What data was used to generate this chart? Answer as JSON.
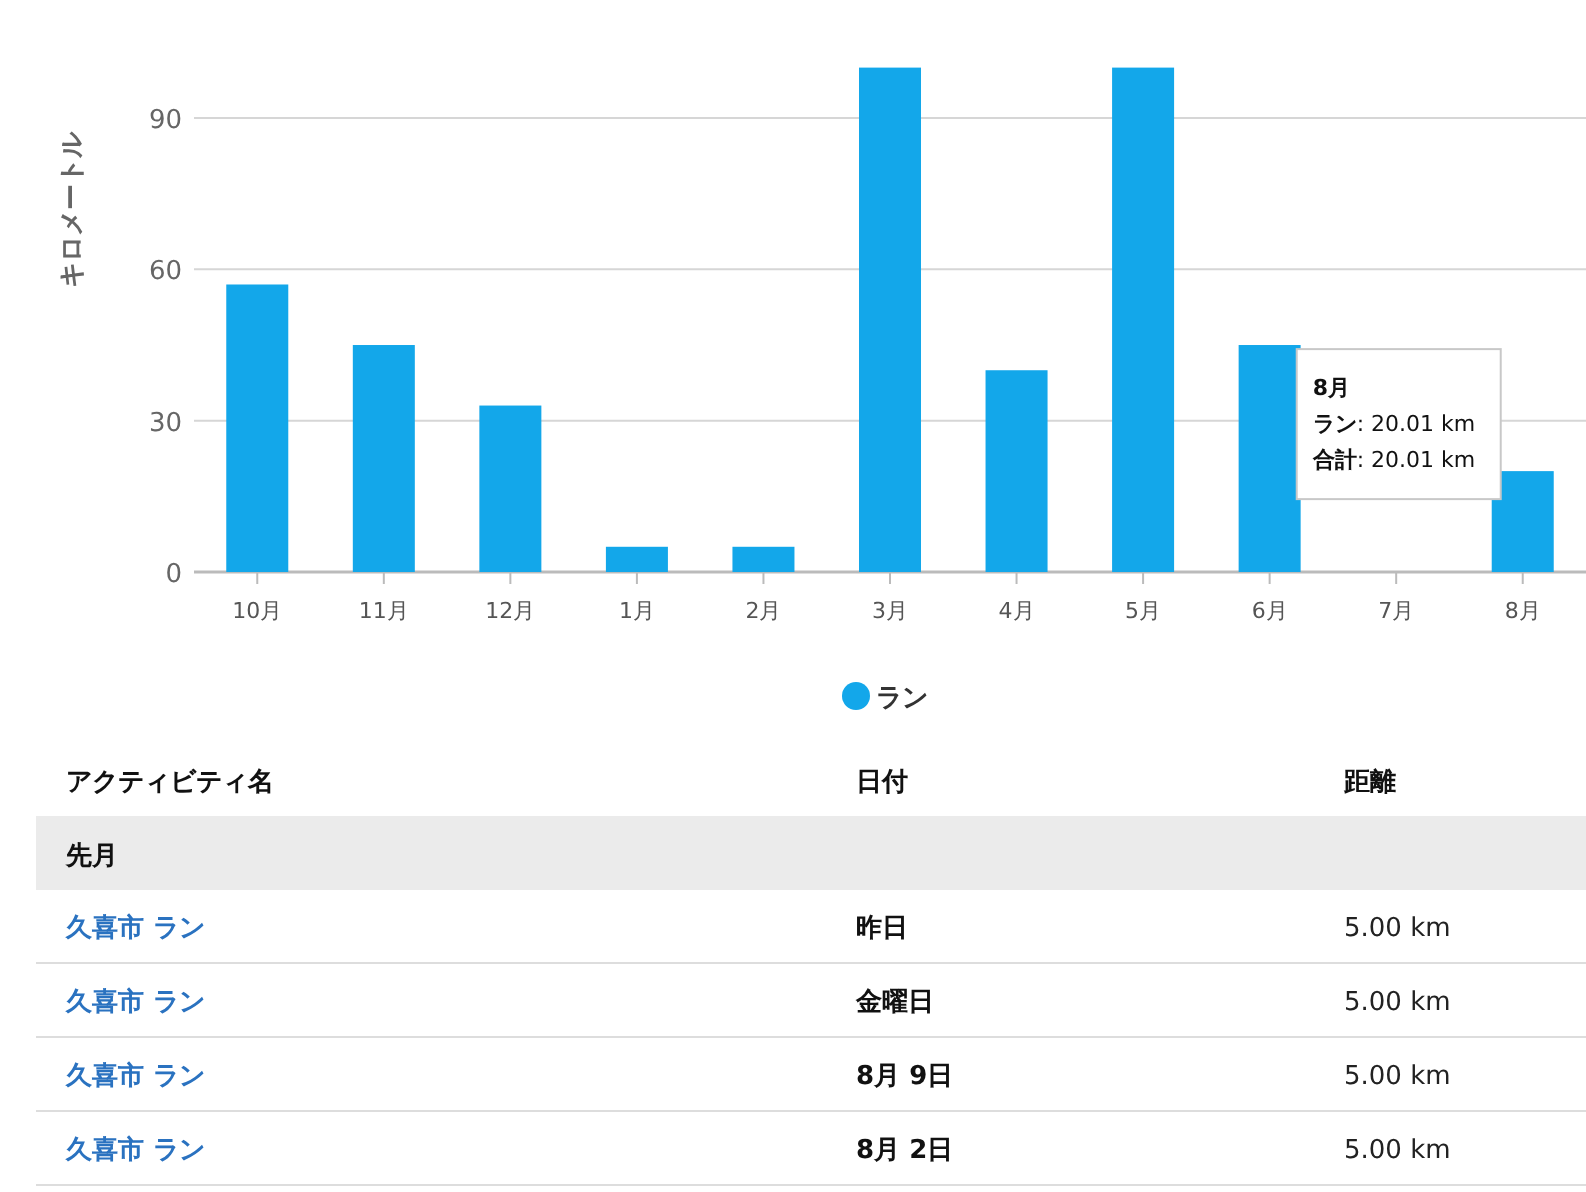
{
  "chart_data": [
    {
      "type": "bar",
      "ylabel": "キロメートル",
      "categories": [
        "10月",
        "11月",
        "12月",
        "1月",
        "2月",
        "3月",
        "4月",
        "5月",
        "6月",
        "7月",
        "8月"
      ],
      "series": [
        {
          "name": "ラン",
          "color": "#13a7ea",
          "values": [
            57,
            45,
            33,
            5,
            5,
            100,
            40,
            100,
            45,
            null,
            20
          ]
        }
      ],
      "ylim": [
        0,
        100
      ],
      "yticks": [
        0,
        30,
        60,
        90
      ],
      "grid": "y",
      "legend": "bottom",
      "annotations": [
        "8月",
        "ラン: 20.01 km",
        "合計: 20.01 km"
      ]
    },
    {
      "type": "other",
      "annotations": [
        "アクティビティ名",
        "日付",
        "距離",
        "先月",
        "久喜市 ラン",
        "昨日",
        "5.00 km",
        "久喜市 ラン",
        "金曜日",
        "5.00 km",
        "久喜市 ラン",
        "8月 9日",
        "5.00 km",
        "久喜市 ラン",
        "8月 2日",
        "5.00 km"
      ]
    }
  ]
}
